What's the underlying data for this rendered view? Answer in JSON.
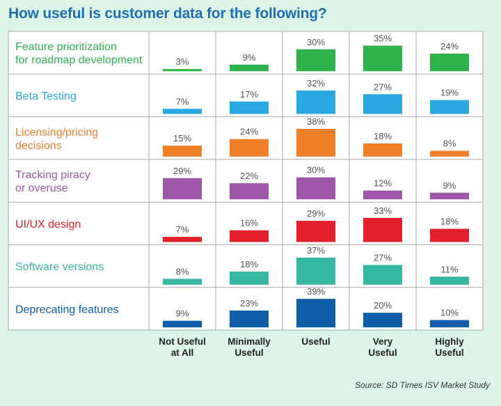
{
  "title": "How useful is customer data for the following?",
  "source": "Source: SD Times ISV Market Study",
  "colors": {
    "background": "#dcf5e6",
    "title": "#1f6fb5",
    "grid": "#aaaaaa",
    "cell_background": "#ffffff"
  },
  "chart_data": {
    "type": "bar",
    "title": "How useful is customer data for the following?",
    "categories": [
      [
        "Not Useful",
        "at All"
      ],
      [
        "Minimally",
        "Useful"
      ],
      [
        "Useful"
      ],
      [
        "Very",
        "Useful"
      ],
      [
        "Highly",
        "Useful"
      ]
    ],
    "unit": "%",
    "grid": true,
    "series": [
      {
        "label": [
          "Feature prioritization",
          "for roadmap development"
        ],
        "color": "#2db34a",
        "values": [
          3,
          9,
          30,
          35,
          24
        ]
      },
      {
        "label": [
          "Beta Testing"
        ],
        "color": "#2aa8e0",
        "values": [
          7,
          17,
          32,
          27,
          19
        ]
      },
      {
        "label": [
          "Licensing/pricing",
          "decisions"
        ],
        "color": "#f07f28",
        "values": [
          15,
          24,
          38,
          18,
          8
        ]
      },
      {
        "label": [
          "Tracking piracy",
          "or overuse"
        ],
        "color": "#9d56a8",
        "values": [
          29,
          22,
          30,
          12,
          9
        ]
      },
      {
        "label": [
          "UI/UX design"
        ],
        "color": "#e31f2b",
        "values": [
          7,
          16,
          29,
          33,
          18
        ]
      },
      {
        "label": [
          "Software versions"
        ],
        "color": "#35b7a2",
        "values": [
          8,
          18,
          37,
          27,
          11
        ]
      },
      {
        "label": [
          "Deprecating features"
        ],
        "color": "#0f5ca8",
        "values": [
          9,
          23,
          39,
          20,
          10
        ]
      }
    ]
  }
}
